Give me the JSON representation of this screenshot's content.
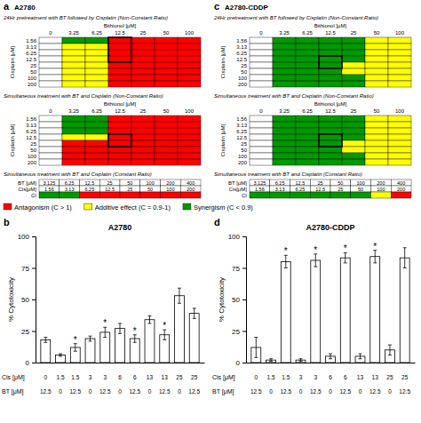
{
  "chart_data": [
    {
      "type": "heatmap",
      "title": "24Hr pretreatment with BT followed by Cisplatin (Non-Constant Ratio)",
      "annotations": [
        "a",
        "A2780"
      ],
      "x_label": "Bithionol [μM]",
      "y_label": "Cisplatin [μM]",
      "x_categories": [
        "0",
        "3.25",
        "6.25",
        "12.5",
        "25",
        "50",
        "100"
      ],
      "y_categories": [
        "1.56",
        "3.13",
        "6.25",
        "12.5",
        "25",
        "50",
        "100",
        "200"
      ],
      "colors": [
        [
          "#FFFFFF",
          "#009900",
          "#009900",
          "#FF0000",
          "#FF0000",
          "#FF0000",
          "#FF0000"
        ],
        [
          "#FFFFFF",
          "#FFFF00",
          "#FFFF00",
          "#FF0000",
          "#FF0000",
          "#FF0000",
          "#FF0000"
        ],
        [
          "#FFFFFF",
          "#FFFF00",
          "#FFFF00",
          "#FF0000",
          "#FF0000",
          "#FF0000",
          "#FF0000"
        ],
        [
          "#FFFFFF",
          "#FFFF00",
          "#FFFF00",
          "#FF0000",
          "#FF0000",
          "#FF0000",
          "#FF0000"
        ],
        [
          "#FFFFFF",
          "#FFFF00",
          "#FFFF00",
          "#FF0000",
          "#FF0000",
          "#FF0000",
          "#FF0000"
        ],
        [
          "#FFFFFF",
          "#FFFF00",
          "#FFFF00",
          "#FF0000",
          "#FF0000",
          "#FF0000",
          "#FF0000"
        ],
        [
          "#FFFFFF",
          "#FFFF00",
          "#FFFF00",
          "#FF0000",
          "#FF0000",
          "#FF0000",
          "#FF0000"
        ],
        [
          "#FFFFFF",
          "#FFFF00",
          "#FFFF00",
          "#FF0000",
          "#FF0000",
          "#FF0000",
          "#FF0000"
        ]
      ],
      "highlight_rows": [
        0,
        3
      ],
      "highlight_column": 3
    },
    {
      "type": "heatmap",
      "title": "Simultaneous treatment with BT and Cisplatin (Non-Constant Ratio)",
      "x_label": "Bithionol [μM]",
      "y_label": "Cisplatin [μM]",
      "x_categories": [
        "0",
        "3.25",
        "6.25",
        "12.5",
        "25",
        "50",
        "100"
      ],
      "y_categories": [
        "1.56",
        "3.13",
        "6.25",
        "12.5",
        "25",
        "50",
        "100",
        "200"
      ],
      "colors": [
        [
          "#FFFFFF",
          "#009900",
          "#009900",
          "#FF0000",
          "#FF0000",
          "#FF0000",
          "#FF0000"
        ],
        [
          "#FFFFFF",
          "#009900",
          "#009900",
          "#FF0000",
          "#FF0000",
          "#FF0000",
          "#FF0000"
        ],
        [
          "#FFFFFF",
          "#009900",
          "#009900",
          "#FF0000",
          "#FF0000",
          "#FF0000",
          "#FF0000"
        ],
        [
          "#FFFFFF",
          "#FFFF00",
          "#FFFF00",
          "#FF0000",
          "#FF0000",
          "#FF0000",
          "#FF0000"
        ],
        [
          "#FFFFFF",
          "#FF0000",
          "#FF0000",
          "#FF0000",
          "#FF0000",
          "#FF0000",
          "#FF0000"
        ],
        [
          "#FFFFFF",
          "#FF0000",
          "#FF0000",
          "#FF0000",
          "#FF0000",
          "#FF0000",
          "#FF0000"
        ],
        [
          "#FFFFFF",
          "#FF0000",
          "#FF0000",
          "#FF0000",
          "#FF0000",
          "#FF0000",
          "#FF0000"
        ],
        [
          "#FFFFFF",
          "#FF0000",
          "#FF0000",
          "#FF0000",
          "#FF0000",
          "#FF0000",
          "#FF0000"
        ]
      ],
      "highlight_rows": [
        3,
        4
      ],
      "highlight_column": 3
    },
    {
      "type": "heatmap",
      "title": "Simultaneous treatment with BT and Cisplatin (Constant Ratio)",
      "y_categories": [
        "BT [μM]",
        "Cis[μM]",
        "CI"
      ],
      "cell_labels": [
        [
          "3.125",
          "6.25",
          "12.5",
          "25",
          "50",
          "100",
          "200",
          "400"
        ],
        [
          "1.56",
          "3.13",
          "6.25",
          "12.5",
          "25",
          "50",
          "100",
          "200"
        ]
      ],
      "colors": [
        [
          "#FFFFFF",
          "#FFFFFF",
          "#FFFFFF",
          "#FFFFFF",
          "#FFFFFF",
          "#FFFFFF",
          "#FFFFFF",
          "#FFFFFF"
        ],
        [
          "#FFFFFF",
          "#FFFFFF",
          "#FFFFFF",
          "#FFFFFF",
          "#FFFFFF",
          "#FFFFFF",
          "#FFFFFF",
          "#FFFFFF"
        ],
        [
          "#009900",
          "#009900",
          "#FF0000",
          "#FF0000",
          "#FF0000",
          "#FF0000",
          "#FF0000",
          "#FF0000"
        ]
      ]
    },
    {
      "type": "heatmap",
      "title": "24Hr pretreatment with BT followed by Cisplatin (Non-Constant Ratio)",
      "annotations": [
        "c",
        "A2780-CDDP"
      ],
      "x_label": "Bithionol [μM]",
      "y_label": "Cisplatin [μM]",
      "x_categories": [
        "0",
        "3.25",
        "6.25",
        "12.5",
        "25",
        "50",
        "100"
      ],
      "y_categories": [
        "1.56",
        "3.13",
        "6.25",
        "12.5",
        "25",
        "50",
        "100",
        "200"
      ],
      "colors": [
        [
          "#FFFFFF",
          "#009900",
          "#009900",
          "#009900",
          "#009900",
          "#FFFF00",
          "#FFFF00"
        ],
        [
          "#FFFFFF",
          "#009900",
          "#009900",
          "#009900",
          "#009900",
          "#FFFF00",
          "#FFFF00"
        ],
        [
          "#FFFFFF",
          "#009900",
          "#009900",
          "#009900",
          "#009900",
          "#FFFF00",
          "#FFFF00"
        ],
        [
          "#FFFFFF",
          "#009900",
          "#009900",
          "#009900",
          "#009900",
          "#FFFF00",
          "#FFFF00"
        ],
        [
          "#FFFFFF",
          "#009900",
          "#009900",
          "#009900",
          "#FFFF00",
          "#FFFF00",
          "#FFFF00"
        ],
        [
          "#FFFFFF",
          "#009900",
          "#009900",
          "#009900",
          "#FFFF00",
          "#FFFF00",
          "#FFFF00"
        ],
        [
          "#FFFFFF",
          "#009900",
          "#009900",
          "#009900",
          "#009900",
          "#FFFF00",
          "#FFFF00"
        ],
        [
          "#FFFFFF",
          "#009900",
          "#009900",
          "#009900",
          "#009900",
          "#FFFF00",
          "#FFFF00"
        ]
      ],
      "highlight_rows": [
        3,
        4
      ],
      "highlight_column": 3
    },
    {
      "type": "heatmap",
      "title": "Simultaneous treatment with BT and Cisplatin (Non-Constant Ratio)",
      "x_label": "Bithionol [μM]",
      "y_label": "Cisplatin [μM]",
      "x_categories": [
        "0",
        "3.25",
        "6.25",
        "12.5",
        "25",
        "50",
        "100"
      ],
      "y_categories": [
        "1.56",
        "3.13",
        "6.25",
        "12.5",
        "25",
        "50",
        "100",
        "200"
      ],
      "colors": [
        [
          "#FFFFFF",
          "#009900",
          "#009900",
          "#009900",
          "#009900",
          "#FFFF00",
          "#FFFF00"
        ],
        [
          "#FFFFFF",
          "#009900",
          "#009900",
          "#009900",
          "#009900",
          "#FFFF00",
          "#FFFF00"
        ],
        [
          "#FFFFFF",
          "#009900",
          "#009900",
          "#009900",
          "#009900",
          "#FFFF00",
          "#FFFF00"
        ],
        [
          "#FFFFFF",
          "#009900",
          "#009900",
          "#009900",
          "#009900",
          "#FFFF00",
          "#FFFF00"
        ],
        [
          "#FFFFFF",
          "#009900",
          "#009900",
          "#009900",
          "#FFFF00",
          "#FFFF00",
          "#FFFF00"
        ],
        [
          "#FFFFFF",
          "#009900",
          "#009900",
          "#009900",
          "#FFFF00",
          "#FFFF00",
          "#FFFF00"
        ],
        [
          "#FFFFFF",
          "#009900",
          "#009900",
          "#009900",
          "#009900",
          "#FFFF00",
          "#FFFF00"
        ],
        [
          "#FFFFFF",
          "#009900",
          "#009900",
          "#009900",
          "#009900",
          "#FFFF00",
          "#FFFF00"
        ]
      ],
      "highlight_rows": [
        3,
        4
      ],
      "highlight_column": 3
    },
    {
      "type": "heatmap",
      "title": "Simultaneous treatment with BT and Cisplatin (Constant Ratio)",
      "y_categories": [
        "BT [μM]",
        "Cis[μM]",
        "CI"
      ],
      "cell_labels": [
        [
          "3.125",
          "6.25",
          "12.5",
          "25",
          "50",
          "100",
          "200",
          "400"
        ],
        [
          "1.56",
          "3.13",
          "6.25",
          "12.5",
          "25",
          "50",
          "100",
          "200"
        ]
      ],
      "colors": [
        [
          "#FFFFFF",
          "#FFFFFF",
          "#FFFFFF",
          "#FFFFFF",
          "#FFFFFF",
          "#FFFFFF",
          "#FFFFFF",
          "#FFFFFF"
        ],
        [
          "#FFFFFF",
          "#FFFFFF",
          "#FFFFFF",
          "#FFFFFF",
          "#FFFFFF",
          "#FFFFFF",
          "#FFFFFF",
          "#FFFFFF"
        ],
        [
          "#009900",
          "#009900",
          "#009900",
          "#009900",
          "#009900",
          "#009900",
          "#FFFF00",
          "#FF0000"
        ]
      ]
    },
    {
      "type": "legend",
      "series": [
        {
          "name": "Antagonism (C > 1)",
          "color": "#FF0000"
        },
        {
          "name": "Additive effect (C = 0.9-1)",
          "color": "#FFFF00"
        },
        {
          "name": "Synergism (C < 0.9)",
          "color": "#009900"
        }
      ]
    },
    {
      "type": "bar",
      "title": "A2780",
      "annotations": [
        "b"
      ],
      "y_label": "% Cytotoxicity",
      "values": [
        18,
        6,
        12,
        19,
        24,
        27,
        19,
        34,
        22,
        53,
        39
      ],
      "errors": [
        2,
        1,
        3,
        2,
        4,
        4,
        3,
        3,
        4,
        6,
        4
      ],
      "stars": [
        false,
        false,
        true,
        false,
        true,
        false,
        true,
        false,
        true,
        false,
        false
      ],
      "star_label": "*",
      "x_label_rows": [
        {
          "label": "Cis [μM]",
          "labels": [
            "0",
            "1.5",
            "1.5",
            "3",
            "3",
            "6",
            "6",
            "13",
            "13",
            "25",
            "25"
          ]
        },
        {
          "label": "BT [μM]",
          "labels": [
            "12.5",
            "0",
            "12.5",
            "0",
            "12.5",
            "0",
            "12.5",
            "0",
            "12.5",
            "0",
            "12.5"
          ]
        }
      ],
      "color": "#FFFFFF",
      "ylim": [
        0,
        100
      ],
      "yticks": [
        0,
        25,
        50,
        75,
        100
      ],
      "grid": false
    },
    {
      "type": "bar",
      "title": "A2780-CDDP",
      "annotations": [
        "d"
      ],
      "y_label": "% Cytotoxicity",
      "values": [
        12,
        2,
        80,
        2,
        81,
        5,
        83,
        5,
        84,
        10,
        83
      ],
      "errors": [
        8,
        1,
        5,
        1,
        5,
        2,
        4,
        2,
        5,
        4,
        8
      ],
      "stars": [
        false,
        false,
        true,
        false,
        true,
        false,
        true,
        false,
        true,
        false,
        false
      ],
      "star_label": "*",
      "x_label_rows": [
        {
          "label": "Cis [μM]",
          "labels": [
            "0",
            "1.5",
            "1.5",
            "3",
            "3",
            "6",
            "6",
            "13",
            "13",
            "25",
            "25"
          ]
        },
        {
          "label": "BT [μM]",
          "labels": [
            "12.5",
            "0",
            "12.5",
            "0",
            "12.5",
            "0",
            "12.5",
            "0",
            "12.5",
            "0",
            "12.5"
          ]
        }
      ],
      "color": "#FFFFFF",
      "ylim": [
        0,
        100
      ],
      "yticks": [
        0,
        25,
        50,
        75,
        100
      ],
      "grid": false
    }
  ]
}
